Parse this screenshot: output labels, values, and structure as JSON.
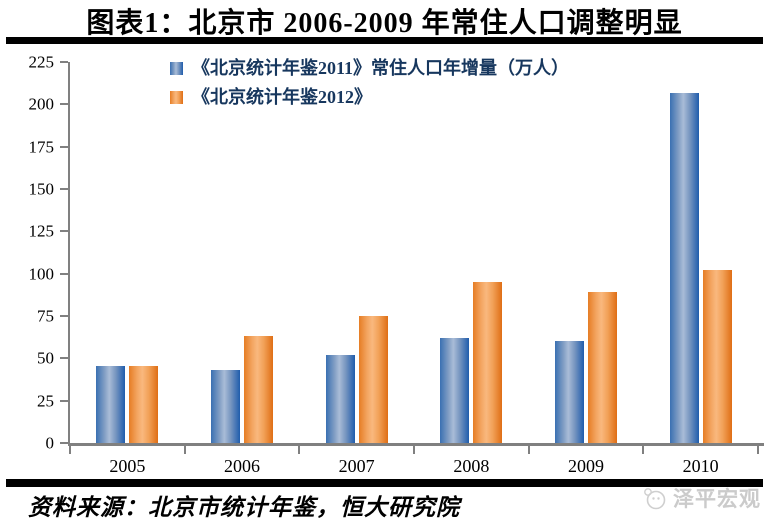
{
  "title": "图表1：北京市 2006-2009 年常住人口调整明显",
  "source": "资料来源：北京市统计年鉴，恒大研究院",
  "brand": {
    "name": "泽平宏观"
  },
  "colors": {
    "bar_blue_edge": "#2F6BB3",
    "bar_blue_light": "#A9BCD7",
    "bar_orange_edge": "#E1751F",
    "bar_orange_light": "#F9B87E",
    "axis": "#808080",
    "legend_text": "#17375E",
    "divider": "#000000",
    "watermark": "#CBCBCB"
  },
  "chart_data": {
    "type": "bar",
    "title": "图表1：北京市 2006-2009 年常住人口调整明显",
    "categories": [
      "2005",
      "2006",
      "2007",
      "2008",
      "2009",
      "2010"
    ],
    "series": [
      {
        "name": "《北京统计年鉴2011》常住人口年增量（万人）",
        "color": "blue",
        "values": [
          45.3,
          43.0,
          52.0,
          62.0,
          60.0,
          206.9
        ]
      },
      {
        "name": "《北京统计年鉴2012》",
        "color": "orange",
        "values": [
          45.3,
          63.0,
          75.0,
          95.0,
          89.0,
          101.9
        ]
      }
    ],
    "xlabel": "",
    "ylabel": "",
    "ylim": [
      0,
      225
    ],
    "ytick_step": 25,
    "grid": false,
    "legend_position": "top-left"
  }
}
